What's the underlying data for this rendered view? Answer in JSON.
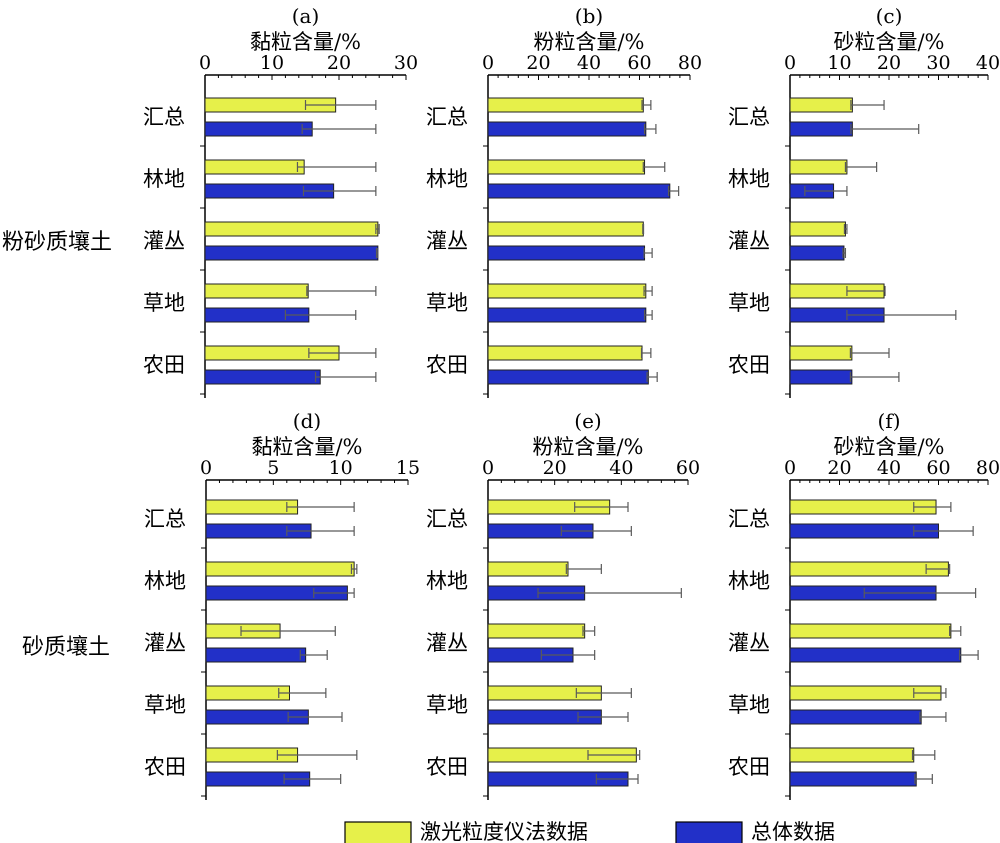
{
  "legend": {
    "items": [
      {
        "label": "激光粒度仪法数据",
        "color": "#e6f04a"
      },
      {
        "label": "总体数据",
        "color": "#2230c8"
      }
    ]
  },
  "row_labels": [
    "粉砂质壤土",
    "砂质壤土"
  ],
  "chart_data": [
    {
      "type": "bar",
      "panel": "(a)",
      "title": "黏粒含量/%",
      "xlim": [
        0,
        30
      ],
      "ticks": [
        0,
        10,
        20,
        30
      ],
      "categories": [
        "汇总",
        "林地",
        "灌丛",
        "草地",
        "农田"
      ],
      "series": [
        {
          "name": "激光粒度仪法数据",
          "values": [
            19.5,
            14.8,
            25.8,
            15.4,
            20.0
          ],
          "error_low": [
            15.0,
            13.8,
            25.5,
            15.2,
            15.5
          ],
          "error_high": [
            25.5,
            25.5,
            26.0,
            25.5,
            25.5
          ]
        },
        {
          "name": "总体数据",
          "values": [
            16.0,
            19.2,
            25.8,
            15.5,
            17.2
          ],
          "error_low": [
            14.5,
            14.7,
            25.6,
            12.0,
            16.5
          ],
          "error_high": [
            25.5,
            25.5,
            25.8,
            22.5,
            25.5
          ]
        }
      ]
    },
    {
      "type": "bar",
      "panel": "(b)",
      "title": "粉粒含量/%",
      "xlim": [
        0,
        80
      ],
      "ticks": [
        0,
        20,
        40,
        60,
        80
      ],
      "categories": [
        "汇总",
        "林地",
        "灌丛",
        "草地",
        "农田"
      ],
      "series": [
        {
          "name": "激光粒度仪法数据",
          "values": [
            61.5,
            62.0,
            61.5,
            62.5,
            61.0
          ],
          "error_low": [
            61.0,
            61.5,
            61.3,
            61.8,
            60.8
          ],
          "error_high": [
            64.5,
            70.0,
            61.6,
            65.0,
            64.5
          ]
        },
        {
          "name": "总体数据",
          "values": [
            62.5,
            72.0,
            62.0,
            62.5,
            63.5
          ],
          "error_low": [
            62.0,
            71.5,
            61.8,
            62.0,
            63.0
          ],
          "error_high": [
            66.5,
            75.5,
            65.0,
            65.0,
            67.0
          ]
        }
      ]
    },
    {
      "type": "bar",
      "panel": "(c)",
      "title": "砂粒含量/%",
      "xlim": [
        0,
        40
      ],
      "ticks": [
        0,
        10,
        20,
        30,
        40
      ],
      "categories": [
        "汇总",
        "林地",
        "灌丛",
        "草地",
        "农田"
      ],
      "series": [
        {
          "name": "激光粒度仪法数据",
          "values": [
            12.6,
            11.5,
            11.2,
            19.0,
            12.5
          ],
          "error_low": [
            12.3,
            11.2,
            11.0,
            11.5,
            12.2
          ],
          "error_high": [
            19.0,
            17.5,
            11.5,
            19.2,
            20.0
          ]
        },
        {
          "name": "总体数据",
          "values": [
            12.6,
            8.8,
            10.9,
            19.0,
            12.5
          ],
          "error_low": [
            12.3,
            3.0,
            10.7,
            11.5,
            12.2
          ],
          "error_high": [
            26.0,
            11.5,
            11.2,
            33.5,
            22.0
          ]
        }
      ]
    },
    {
      "type": "bar",
      "panel": "(d)",
      "title": "黏粒含量/%",
      "xlim": [
        0,
        15
      ],
      "ticks": [
        0,
        5,
        10,
        15
      ],
      "categories": [
        "汇总",
        "林地",
        "灌丛",
        "草地",
        "农田"
      ],
      "series": [
        {
          "name": "激光粒度仪法数据",
          "values": [
            6.8,
            11.0,
            5.5,
            6.2,
            6.8
          ],
          "error_low": [
            6.0,
            10.8,
            2.6,
            5.4,
            5.3
          ],
          "error_high": [
            11.0,
            11.2,
            9.6,
            8.9,
            11.2
          ]
        },
        {
          "name": "总体数据",
          "values": [
            7.8,
            10.5,
            7.4,
            7.6,
            7.7
          ],
          "error_low": [
            6.0,
            8.0,
            7.0,
            6.1,
            5.8
          ],
          "error_high": [
            11.0,
            11.0,
            9.0,
            10.1,
            10.0
          ]
        }
      ]
    },
    {
      "type": "bar",
      "panel": "(e)",
      "title": "粉粒含量/%",
      "xlim": [
        0,
        60
      ],
      "ticks": [
        0,
        20,
        40,
        60
      ],
      "categories": [
        "汇总",
        "林地",
        "灌丛",
        "草地",
        "农田"
      ],
      "series": [
        {
          "name": "激光粒度仪法数据",
          "values": [
            36.5,
            24.0,
            29.0,
            34.0,
            44.5
          ],
          "error_low": [
            26.0,
            23.5,
            28.5,
            26.5,
            30.0
          ],
          "error_high": [
            42.0,
            34.0,
            32.0,
            43.0,
            45.5
          ]
        },
        {
          "name": "总体数据",
          "values": [
            31.5,
            29.0,
            25.5,
            34.0,
            42.0
          ],
          "error_low": [
            22.0,
            15.0,
            16.0,
            27.0,
            32.5
          ],
          "error_high": [
            43.0,
            58.0,
            32.0,
            42.0,
            45.0
          ]
        }
      ]
    },
    {
      "type": "bar",
      "panel": "(f)",
      "title": "砂粒含量/%",
      "xlim": [
        0,
        80
      ],
      "ticks": [
        0,
        20,
        40,
        60,
        80
      ],
      "categories": [
        "汇总",
        "林地",
        "灌丛",
        "草地",
        "农田"
      ],
      "series": [
        {
          "name": "激光粒度仪法数据",
          "values": [
            59.0,
            64.0,
            65.0,
            61.0,
            50.0
          ],
          "error_low": [
            50.0,
            55.0,
            64.5,
            50.0,
            49.5
          ],
          "error_high": [
            65.0,
            64.5,
            69.0,
            63.0,
            58.5
          ]
        },
        {
          "name": "总体数据",
          "values": [
            60.0,
            59.0,
            69.0,
            53.0,
            51.0
          ],
          "error_low": [
            50.0,
            30.0,
            68.5,
            52.5,
            50.5
          ],
          "error_high": [
            74.0,
            75.0,
            76.0,
            63.0,
            57.5
          ]
        }
      ]
    }
  ]
}
